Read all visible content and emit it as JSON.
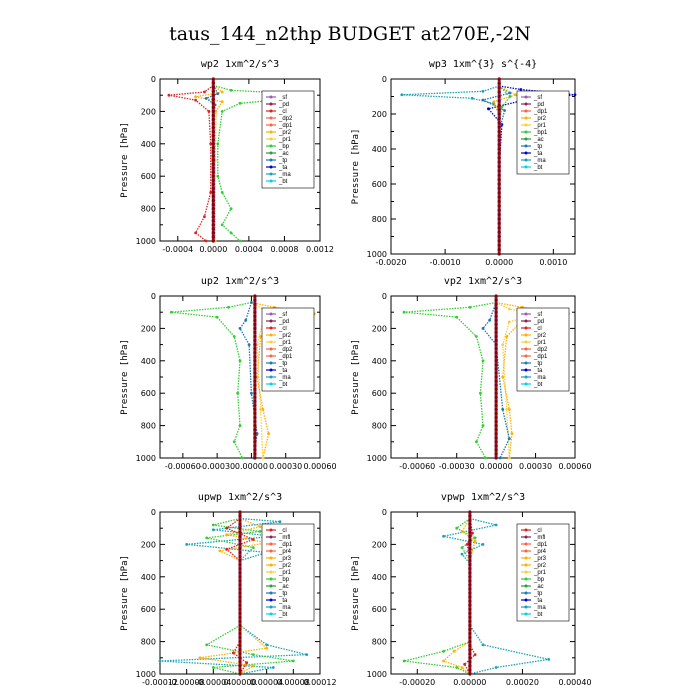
{
  "page_title": "taus_144_n2thp  BUDGET at270E,-2N",
  "colors": {
    "sf": "#9b59b6",
    "pd": "#8b2252",
    "cl": "#e02020",
    "dp": "#ff6040",
    "pr": "#ffb000",
    "pr1b": "#f4d03f",
    "bp": "#33cc33",
    "ac": "#2a9d3a",
    "tp": "#1f77b4",
    "ta": "#0000cc",
    "ma": "#17a2b8",
    "bt": "#00d0f0"
  },
  "chart_data": [
    {
      "type": "line",
      "title": "wp2   1xm^2/s^3",
      "ylabel": "Pressure [hPa]",
      "ylim": [
        1000,
        0
      ],
      "xlim": [
        -0.0006,
        0.0012
      ],
      "xticks": [
        "-0.0004",
        "0.0000",
        "0.0004",
        "0.0008",
        "0.0012"
      ],
      "xtick_values": [
        -0.0004,
        0.0,
        0.0004,
        0.0008,
        0.0012
      ],
      "yticks": [
        "0",
        "200",
        "400",
        "600",
        "800",
        "1000"
      ],
      "legend_position": "top-right",
      "legend": [
        "_sf",
        "_pd",
        "_cl",
        "_dp2",
        "_dp1",
        "_pr2",
        "_pr1",
        "_bp",
        "_ac",
        "_tp",
        "_ta",
        "_ma",
        "_bt"
      ],
      "series": [
        {
          "key": "bp",
          "x": [
            0,
            0.0002,
            0.0009,
            0.0011,
            0.0003,
            0.0001,
            5e-05,
            5e-05,
            0.0001,
            0.0002,
            0.0001,
            0.0002,
            0.0003
          ],
          "y": [
            40,
            70,
            90,
            110,
            150,
            200,
            400,
            600,
            700,
            800,
            900,
            950,
            1000
          ]
        },
        {
          "key": "cl",
          "x": [
            0,
            -0.0001,
            -0.0005,
            -0.0002,
            -5e-05,
            -3e-05,
            -3e-05,
            -0.0001,
            -0.0002,
            -8e-05
          ],
          "y": [
            40,
            80,
            100,
            130,
            200,
            400,
            700,
            850,
            950,
            1000
          ]
        },
        {
          "key": "pr",
          "x": [
            0,
            0.0001,
            -0.0002,
            0.0001,
            3e-05,
            2e-05,
            2e-05
          ],
          "y": [
            40,
            80,
            110,
            140,
            200,
            500,
            1000
          ]
        },
        {
          "key": "tp",
          "x": [
            0,
            5e-05,
            -8e-05,
            2e-05,
            0,
            0
          ],
          "y": [
            40,
            90,
            120,
            160,
            300,
            1000
          ]
        },
        {
          "key": "pd",
          "x": [
            0,
            0,
            0
          ],
          "y": [
            0,
            500,
            1000
          ]
        }
      ]
    },
    {
      "type": "line",
      "title": "wp3   1xm^{3} s^{-4}",
      "ylabel": "Pressure [hPa]",
      "ylim": [
        1000,
        0
      ],
      "xlim": [
        -0.002,
        0.0014
      ],
      "xticks": [
        "-0.0020",
        "-0.0010",
        "0.0000",
        "0.0010"
      ],
      "xtick_values": [
        -0.002,
        -0.001,
        0.0,
        0.001
      ],
      "yticks": [
        "0",
        "200",
        "400",
        "600",
        "800",
        "1000"
      ],
      "legend_position": "top-right",
      "legend": [
        "_sf",
        "_pd",
        "_dp1",
        "_pr2",
        "_pr1",
        "_bp1",
        "_ac",
        "_tp",
        "_ta",
        "_ma",
        "_bt"
      ],
      "series": [
        {
          "key": "ma",
          "x": [
            0,
            -0.0003,
            -0.0018,
            -0.0005,
            -0.0001,
            0,
            0,
            0
          ],
          "y": [
            40,
            70,
            90,
            110,
            140,
            200,
            500,
            1000
          ]
        },
        {
          "key": "ta",
          "x": [
            0,
            0.0004,
            0.0014,
            0.0006,
            -0.0002,
            5e-05,
            0,
            0
          ],
          "y": [
            40,
            60,
            90,
            110,
            170,
            260,
            500,
            1000
          ]
        },
        {
          "key": "tp",
          "x": [
            0,
            0.0002,
            -0.0003,
            0.0001,
            0,
            0
          ],
          "y": [
            40,
            80,
            120,
            180,
            300,
            1000
          ]
        },
        {
          "key": "pr",
          "x": [
            0,
            0.0003,
            -0.0001,
            0,
            0
          ],
          "y": [
            40,
            90,
            130,
            200,
            1000
          ]
        },
        {
          "key": "bp",
          "x": [
            0,
            0.0002,
            5e-05,
            0,
            0
          ],
          "y": [
            40,
            100,
            160,
            250,
            1000
          ]
        },
        {
          "key": "pd",
          "x": [
            0,
            0,
            0
          ],
          "y": [
            0,
            500,
            1000
          ]
        }
      ]
    },
    {
      "type": "line",
      "title": "up2   1xm^2/s^3",
      "ylabel": "Pressure [hPa]",
      "ylim": [
        1000,
        0
      ],
      "xlim": [
        -0.0008,
        0.0006
      ],
      "xticks": [
        "-0.00060",
        "-0.00030",
        "0.00000",
        "0.00030",
        "0.00060"
      ],
      "xtick_values": [
        -0.0006,
        -0.0003,
        0.0,
        0.0003,
        0.0006
      ],
      "yticks": [
        "0",
        "200",
        "400",
        "600",
        "800",
        "1000"
      ],
      "legend_position": "top-right",
      "legend": [
        "_sf",
        "_pd",
        "_cl",
        "_pr2",
        "_pr1",
        "_dp2",
        "_dp1",
        "_tp",
        "_ta",
        "_ma",
        "_bt"
      ],
      "series": [
        {
          "key": "bp",
          "x": [
            0,
            -0.0002,
            -0.0007,
            -0.0003,
            -0.00015,
            -0.0001,
            -0.00012,
            -0.0001,
            -0.00015,
            -8e-05
          ],
          "y": [
            40,
            70,
            100,
            130,
            250,
            400,
            600,
            800,
            900,
            1000
          ]
        },
        {
          "key": "pr",
          "x": [
            0,
            0.0002,
            0.00055,
            0.0002,
            8e-05,
            5e-05,
            0.0001,
            0.00015,
            0.0001
          ],
          "y": [
            40,
            70,
            110,
            150,
            250,
            500,
            700,
            850,
            1000
          ]
        },
        {
          "key": "pr1b",
          "x": [
            0,
            0.0001,
            0.0003,
            0.0001,
            5e-05,
            8e-05,
            0.0001
          ],
          "y": [
            40,
            80,
            110,
            160,
            300,
            700,
            1000
          ]
        },
        {
          "key": "tp",
          "x": [
            0,
            -5e-05,
            -0.0001,
            -2e-05,
            0,
            5e-05,
            2e-05
          ],
          "y": [
            40,
            150,
            200,
            300,
            600,
            850,
            1000
          ]
        },
        {
          "key": "pd",
          "x": [
            3e-05,
            3e-05,
            3e-05
          ],
          "y": [
            0,
            500,
            1000
          ]
        }
      ]
    },
    {
      "type": "line",
      "title": "vp2   1xm^2/s^3",
      "ylabel": "Pressure [hPa]",
      "ylim": [
        1000,
        0
      ],
      "xlim": [
        -0.0008,
        0.0006
      ],
      "xticks": [
        "-0.00060",
        "-0.00030",
        "0.00000",
        "0.00030",
        "0.00060"
      ],
      "xtick_values": [
        -0.0006,
        -0.0003,
        0.0,
        0.0003,
        0.0006
      ],
      "yticks": [
        "0",
        "200",
        "400",
        "600",
        "800",
        "1000"
      ],
      "legend_position": "top-right",
      "legend": [
        "_sf",
        "_pd",
        "_cl",
        "_pr2",
        "_pr1",
        "_dp2",
        "_dp1",
        "_tp",
        "_ta",
        "_ma",
        "_bt"
      ],
      "series": [
        {
          "key": "bp",
          "x": [
            0,
            -0.0002,
            -0.0007,
            -0.0003,
            -0.00015,
            -0.0001,
            -0.00012,
            -0.0001,
            -0.00015,
            -8e-05
          ],
          "y": [
            40,
            70,
            100,
            130,
            250,
            400,
            600,
            800,
            900,
            1000
          ]
        },
        {
          "key": "pr",
          "x": [
            0,
            0.0002,
            0.00055,
            0.0002,
            8e-05,
            5e-05,
            0.0001,
            0.00012,
            0.0001
          ],
          "y": [
            40,
            70,
            110,
            150,
            250,
            500,
            700,
            850,
            1000
          ]
        },
        {
          "key": "pr1b",
          "x": [
            0,
            0.0001,
            0.0003,
            0.0001,
            5e-05,
            8e-05,
            0.0001
          ],
          "y": [
            40,
            80,
            110,
            160,
            300,
            700,
            1000
          ]
        },
        {
          "key": "tp",
          "x": [
            0,
            -5e-05,
            -0.0001,
            0,
            5e-05,
            0.0001,
            3e-05
          ],
          "y": [
            40,
            150,
            200,
            300,
            700,
            880,
            1000
          ]
        },
        {
          "key": "pd",
          "x": [
            0,
            0,
            0
          ],
          "y": [
            0,
            500,
            1000
          ]
        }
      ]
    },
    {
      "type": "line",
      "title": "upwp   1xm^2/s^3",
      "ylabel": "Pressure [hPa]",
      "ylim": [
        1000,
        0
      ],
      "xlim": [
        -0.00012,
        0.00012
      ],
      "xticks": [
        "-0.00012",
        "-0.00008",
        "-0.00004",
        "0.00000",
        "0.00004",
        "0.00008",
        "0.00012"
      ],
      "xtick_values": [
        -0.00012,
        -8e-05,
        -4e-05,
        0.0,
        4e-05,
        8e-05,
        0.00012
      ],
      "yticks": [
        "0",
        "200",
        "400",
        "600",
        "800",
        "1000"
      ],
      "legend_position": "top-right",
      "legend": [
        "_cl",
        "_mfl",
        "_dp1",
        "_pr4",
        "_pr3",
        "_pr2",
        "_pr1",
        "_bp",
        "_ac",
        "_tp",
        "_ta",
        "_ma",
        "_bt"
      ],
      "series": [
        {
          "key": "ma",
          "x": [
            0,
            6e-05,
            -4e-05,
            5e-05,
            -8e-05,
            4e-05,
            0,
            0,
            4e-05,
            0.0001,
            -0.00012,
            5e-05,
            0
          ],
          "y": [
            40,
            60,
            110,
            150,
            200,
            250,
            300,
            700,
            820,
            880,
            920,
            960,
            1000
          ]
        },
        {
          "key": "bp",
          "x": [
            0,
            -4e-05,
            3e-05,
            -5e-05,
            2e-05,
            0,
            0,
            -5e-05,
            2e-05,
            8e-05,
            -4e-05,
            0
          ],
          "y": [
            40,
            80,
            120,
            160,
            220,
            300,
            700,
            820,
            880,
            920,
            960,
            1000
          ]
        },
        {
          "key": "pr",
          "x": [
            0,
            3e-05,
            -2e-05,
            4e-05,
            -3e-05,
            0,
            0,
            4e-05,
            -6e-05,
            2e-05,
            0
          ],
          "y": [
            40,
            90,
            140,
            190,
            240,
            300,
            700,
            840,
            900,
            950,
            1000
          ]
        },
        {
          "key": "cl",
          "x": [
            0,
            -2e-05,
            2e-05,
            -2e-05,
            0,
            0,
            -1e-05,
            1e-05,
            0
          ],
          "y": [
            40,
            100,
            170,
            230,
            300,
            800,
            870,
            930,
            1000
          ]
        },
        {
          "key": "pd",
          "x": [
            0,
            0,
            0
          ],
          "y": [
            0,
            500,
            1000
          ]
        }
      ]
    },
    {
      "type": "line",
      "title": "vpwp   1xm^2/s^3",
      "ylabel": "Pressure [hPa]",
      "ylim": [
        1000,
        0
      ],
      "xlim": [
        -0.0003,
        0.0004
      ],
      "xticks": [
        "-0.00020",
        "0.00000",
        "0.00020",
        "0.00040"
      ],
      "xtick_values": [
        -0.0002,
        0.0,
        0.0002,
        0.0004
      ],
      "yticks": [
        "0",
        "200",
        "400",
        "600",
        "800",
        "1000"
      ],
      "legend_position": "top-right",
      "legend": [
        "_cl",
        "_mfl",
        "_dp1",
        "_pr4",
        "_pr3",
        "_pr2",
        "_pr1",
        "_bp",
        "_ac",
        "_tp",
        "_ta",
        "_ma",
        "_bt"
      ],
      "series": [
        {
          "key": "ma",
          "x": [
            0,
            0.0001,
            -0.0001,
            5e-05,
            -3e-05,
            0,
            0,
            5e-05,
            0.0003,
            0.0001,
            0
          ],
          "y": [
            40,
            80,
            150,
            200,
            260,
            320,
            700,
            820,
            910,
            960,
            1000
          ]
        },
        {
          "key": "bp",
          "x": [
            0,
            -5e-05,
            2e-05,
            -3e-05,
            0,
            0,
            -0.0001,
            -0.00025,
            -5e-05,
            0
          ],
          "y": [
            40,
            100,
            160,
            220,
            300,
            800,
            860,
            920,
            960,
            1000
          ]
        },
        {
          "key": "pr",
          "x": [
            0,
            -3e-05,
            2e-05,
            0,
            0,
            -6e-05,
            -0.0001,
            -3e-05,
            0
          ],
          "y": [
            40,
            120,
            180,
            300,
            800,
            860,
            920,
            960,
            1000
          ]
        },
        {
          "key": "cl",
          "x": [
            0,
            1e-05,
            -1e-05,
            0,
            0,
            2e-05,
            -2e-05,
            0
          ],
          "y": [
            40,
            130,
            200,
            300,
            820,
            880,
            940,
            1000
          ]
        },
        {
          "key": "pd",
          "x": [
            0,
            0,
            0
          ],
          "y": [
            0,
            500,
            1000
          ]
        }
      ]
    }
  ]
}
